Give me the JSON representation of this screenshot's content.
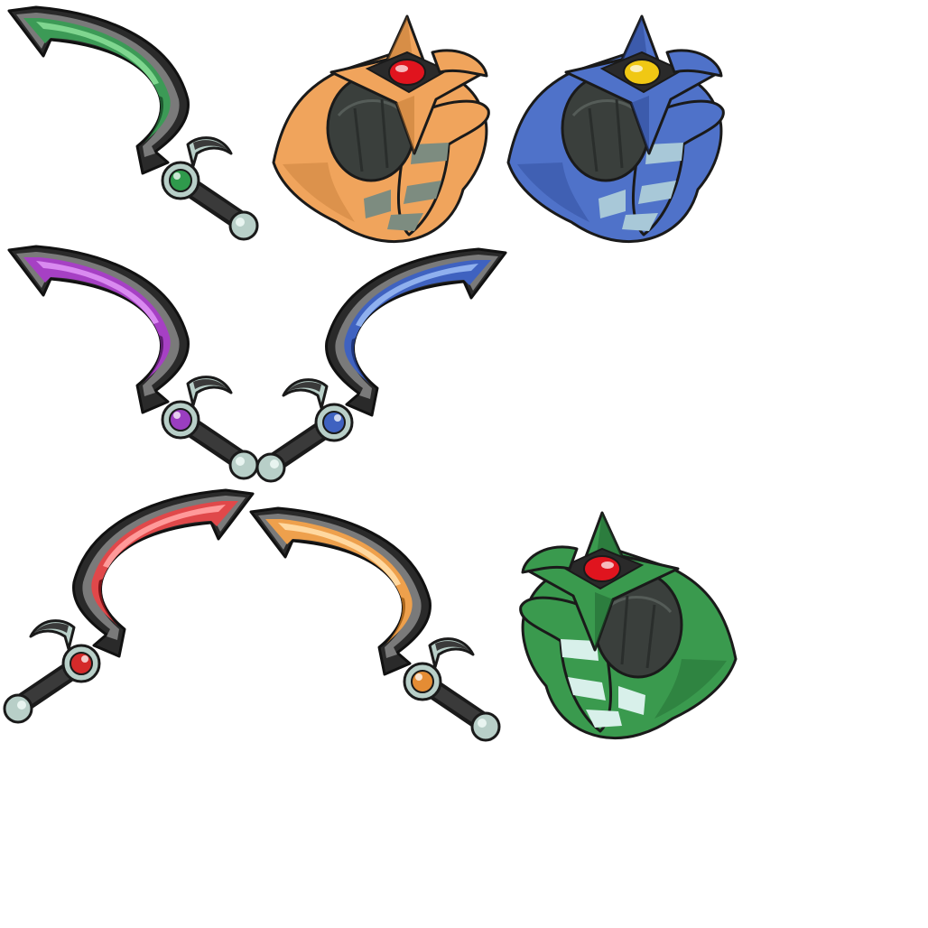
{
  "sheet": {
    "background": "#ffffff",
    "sprites": [
      {
        "name": "scimitar-green",
        "kind": "scimitar",
        "blade": "#3c9a56",
        "blade_light": "#7fd68f",
        "blade_dark": "#1f5a31",
        "gem": "#2f9a4c",
        "flip": false
      },
      {
        "name": "helmet-orange",
        "kind": "helmet",
        "body": "#f0a45c",
        "body_dark": "#b8742f",
        "stripe": "#7d8c80",
        "gem": "#e0141e",
        "facing": "right"
      },
      {
        "name": "helmet-blue",
        "kind": "helmet",
        "body": "#4f72c9",
        "body_dark": "#26408a",
        "stripe": "#a8c8d8",
        "gem": "#f0c814",
        "facing": "right"
      },
      {
        "name": "scimitar-purple",
        "kind": "scimitar",
        "blade": "#a640c4",
        "blade_light": "#d98af0",
        "blade_dark": "#5e1f70",
        "gem": "#9a3ec0",
        "flip": false
      },
      {
        "name": "scimitar-blue",
        "kind": "scimitar",
        "blade": "#3f62c0",
        "blade_light": "#8fb0ee",
        "blade_dark": "#1f367a",
        "gem": "#3f62c0",
        "flip": true
      },
      {
        "name": "scimitar-red",
        "kind": "scimitar",
        "blade": "#e0484a",
        "blade_light": "#ff9a9a",
        "blade_dark": "#7a1418",
        "gem": "#d42a2a",
        "flip": true
      },
      {
        "name": "scimitar-orange",
        "kind": "scimitar",
        "blade": "#eea04c",
        "blade_light": "#ffd8a0",
        "blade_dark": "#a8651c",
        "gem": "#e48c34",
        "flip": false
      },
      {
        "name": "helmet-green",
        "kind": "helmet",
        "body": "#3a9a4e",
        "body_dark": "#1d5c2c",
        "stripe": "#d8f0ea",
        "gem": "#e0141e",
        "facing": "left"
      }
    ]
  }
}
